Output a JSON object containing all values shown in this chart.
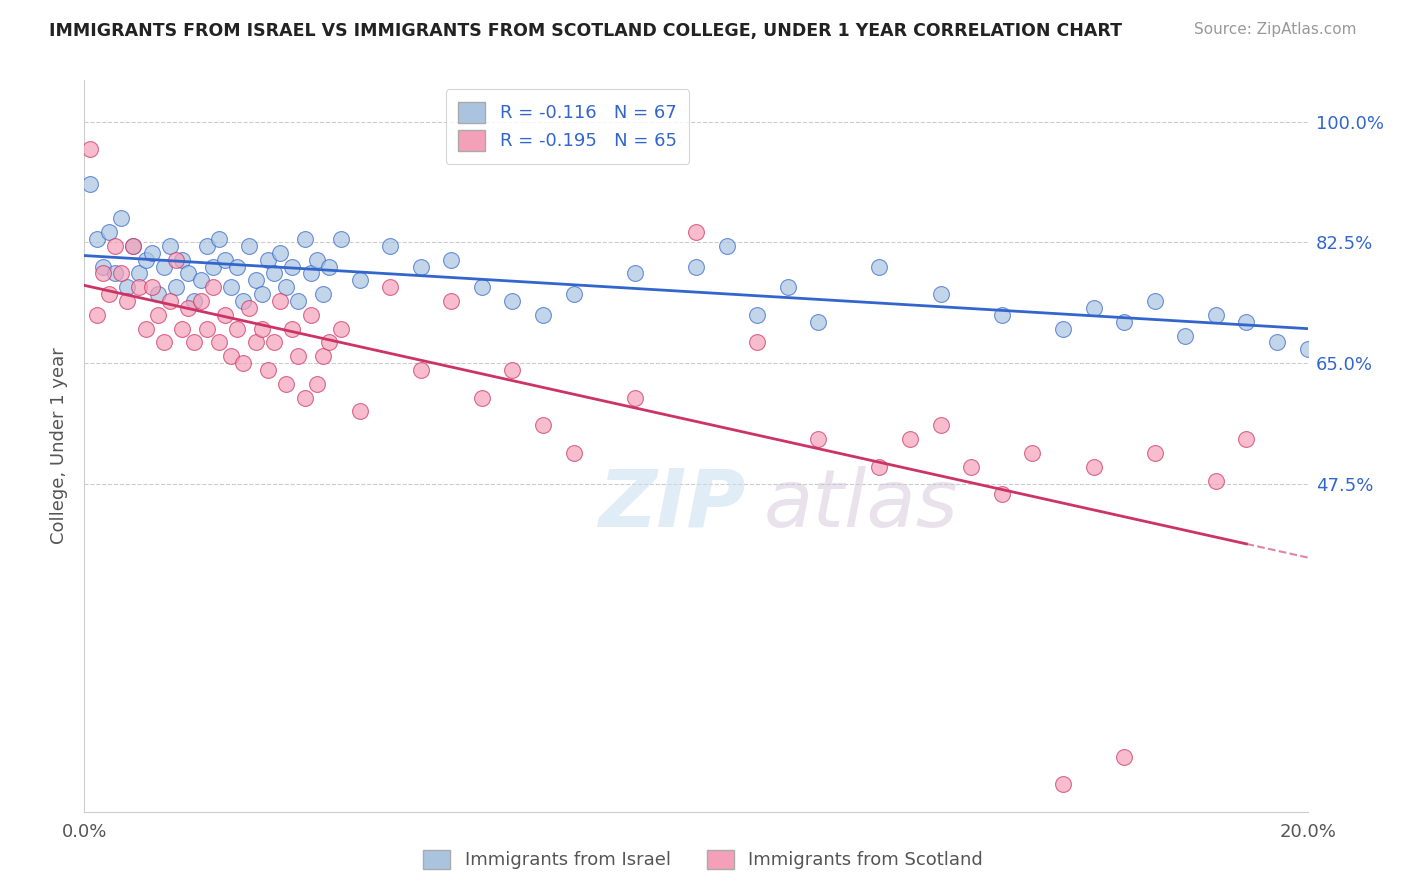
{
  "title": "IMMIGRANTS FROM ISRAEL VS IMMIGRANTS FROM SCOTLAND COLLEGE, UNDER 1 YEAR CORRELATION CHART",
  "source": "Source: ZipAtlas.com",
  "ylabel": "College, Under 1 year",
  "legend_israel": "R = -0.116   N = 67",
  "legend_scotland": "R = -0.195   N = 65",
  "legend_label_israel": "Immigrants from Israel",
  "legend_label_scotland": "Immigrants from Scotland",
  "israel_color": "#aac4e0",
  "scotland_color": "#f4a0b8",
  "israel_line_color": "#3366cc",
  "scotland_line_color": "#cc3366",
  "background_color": "#ffffff",
  "grid_color": "#cccccc",
  "israel_points": [
    [
      0.001,
      0.91
    ],
    [
      0.002,
      0.83
    ],
    [
      0.003,
      0.79
    ],
    [
      0.004,
      0.84
    ],
    [
      0.005,
      0.78
    ],
    [
      0.006,
      0.86
    ],
    [
      0.007,
      0.76
    ],
    [
      0.008,
      0.82
    ],
    [
      0.009,
      0.78
    ],
    [
      0.01,
      0.8
    ],
    [
      0.011,
      0.81
    ],
    [
      0.012,
      0.75
    ],
    [
      0.013,
      0.79
    ],
    [
      0.014,
      0.82
    ],
    [
      0.015,
      0.76
    ],
    [
      0.016,
      0.8
    ],
    [
      0.017,
      0.78
    ],
    [
      0.018,
      0.74
    ],
    [
      0.019,
      0.77
    ],
    [
      0.02,
      0.82
    ],
    [
      0.021,
      0.79
    ],
    [
      0.022,
      0.83
    ],
    [
      0.023,
      0.8
    ],
    [
      0.024,
      0.76
    ],
    [
      0.025,
      0.79
    ],
    [
      0.026,
      0.74
    ],
    [
      0.027,
      0.82
    ],
    [
      0.028,
      0.77
    ],
    [
      0.029,
      0.75
    ],
    [
      0.03,
      0.8
    ],
    [
      0.031,
      0.78
    ],
    [
      0.032,
      0.81
    ],
    [
      0.033,
      0.76
    ],
    [
      0.034,
      0.79
    ],
    [
      0.035,
      0.74
    ],
    [
      0.036,
      0.83
    ],
    [
      0.037,
      0.78
    ],
    [
      0.038,
      0.8
    ],
    [
      0.039,
      0.75
    ],
    [
      0.04,
      0.79
    ],
    [
      0.042,
      0.83
    ],
    [
      0.045,
      0.77
    ],
    [
      0.05,
      0.82
    ],
    [
      0.055,
      0.79
    ],
    [
      0.06,
      0.8
    ],
    [
      0.065,
      0.76
    ],
    [
      0.07,
      0.74
    ],
    [
      0.075,
      0.72
    ],
    [
      0.08,
      0.75
    ],
    [
      0.09,
      0.78
    ],
    [
      0.1,
      0.79
    ],
    [
      0.105,
      0.82
    ],
    [
      0.11,
      0.72
    ],
    [
      0.115,
      0.76
    ],
    [
      0.12,
      0.71
    ],
    [
      0.13,
      0.79
    ],
    [
      0.14,
      0.75
    ],
    [
      0.15,
      0.72
    ],
    [
      0.16,
      0.7
    ],
    [
      0.165,
      0.73
    ],
    [
      0.17,
      0.71
    ],
    [
      0.175,
      0.74
    ],
    [
      0.18,
      0.69
    ],
    [
      0.185,
      0.72
    ],
    [
      0.19,
      0.71
    ],
    [
      0.195,
      0.68
    ],
    [
      0.2,
      0.67
    ]
  ],
  "scotland_points": [
    [
      0.001,
      0.96
    ],
    [
      0.002,
      0.72
    ],
    [
      0.003,
      0.78
    ],
    [
      0.004,
      0.75
    ],
    [
      0.005,
      0.82
    ],
    [
      0.006,
      0.78
    ],
    [
      0.007,
      0.74
    ],
    [
      0.008,
      0.82
    ],
    [
      0.009,
      0.76
    ],
    [
      0.01,
      0.7
    ],
    [
      0.011,
      0.76
    ],
    [
      0.012,
      0.72
    ],
    [
      0.013,
      0.68
    ],
    [
      0.014,
      0.74
    ],
    [
      0.015,
      0.8
    ],
    [
      0.016,
      0.7
    ],
    [
      0.017,
      0.73
    ],
    [
      0.018,
      0.68
    ],
    [
      0.019,
      0.74
    ],
    [
      0.02,
      0.7
    ],
    [
      0.021,
      0.76
    ],
    [
      0.022,
      0.68
    ],
    [
      0.023,
      0.72
    ],
    [
      0.024,
      0.66
    ],
    [
      0.025,
      0.7
    ],
    [
      0.026,
      0.65
    ],
    [
      0.027,
      0.73
    ],
    [
      0.028,
      0.68
    ],
    [
      0.029,
      0.7
    ],
    [
      0.03,
      0.64
    ],
    [
      0.031,
      0.68
    ],
    [
      0.032,
      0.74
    ],
    [
      0.033,
      0.62
    ],
    [
      0.034,
      0.7
    ],
    [
      0.035,
      0.66
    ],
    [
      0.036,
      0.6
    ],
    [
      0.037,
      0.72
    ],
    [
      0.038,
      0.62
    ],
    [
      0.039,
      0.66
    ],
    [
      0.04,
      0.68
    ],
    [
      0.042,
      0.7
    ],
    [
      0.045,
      0.58
    ],
    [
      0.05,
      0.76
    ],
    [
      0.055,
      0.64
    ],
    [
      0.06,
      0.74
    ],
    [
      0.065,
      0.6
    ],
    [
      0.07,
      0.64
    ],
    [
      0.075,
      0.56
    ],
    [
      0.08,
      0.52
    ],
    [
      0.09,
      0.6
    ],
    [
      0.1,
      0.84
    ],
    [
      0.11,
      0.68
    ],
    [
      0.12,
      0.54
    ],
    [
      0.13,
      0.5
    ],
    [
      0.135,
      0.54
    ],
    [
      0.14,
      0.56
    ],
    [
      0.145,
      0.5
    ],
    [
      0.15,
      0.46
    ],
    [
      0.155,
      0.52
    ],
    [
      0.16,
      0.04
    ],
    [
      0.165,
      0.5
    ],
    [
      0.17,
      0.08
    ],
    [
      0.175,
      0.52
    ],
    [
      0.185,
      0.48
    ],
    [
      0.19,
      0.54
    ]
  ],
  "xlim": [
    0.0,
    0.2
  ],
  "ylim": [
    0.0,
    1.06
  ],
  "ytick_vals": [
    0.475,
    0.65,
    0.825,
    1.0
  ],
  "ytick_labels": [
    "47.5%",
    "65.0%",
    "82.5%",
    "100.0%"
  ],
  "xtick_vals": [
    0.0,
    0.2
  ],
  "xtick_labels": [
    "0.0%",
    "20.0%"
  ],
  "watermark_text": "ZIPatlas",
  "watermark_zip": "ZIP",
  "watermark_atlas": "atlas"
}
